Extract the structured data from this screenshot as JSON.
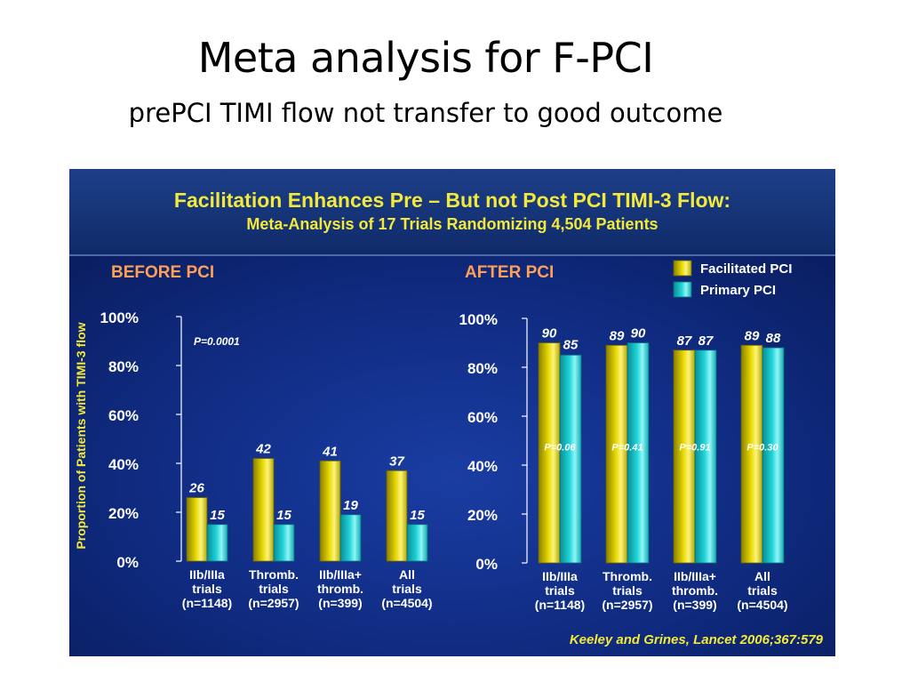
{
  "slide": {
    "title": "Meta analysis for F-PCI",
    "subtitle": "prePCI TIMI flow not transfer to good outcome"
  },
  "figure": {
    "title": "Facilitation Enhances Pre – But not Post PCI TIMI-3 Flow:",
    "subtitle": "Meta-Analysis of 17 Trials Randomizing 4,504 Patients",
    "citation": "Keeley and Grines, Lancet 2006;367:579"
  },
  "colors": {
    "facilitated": "#e6d800",
    "primary": "#20d3d8",
    "panel_label": "#ff9f55",
    "axis_label": "#f3e93a",
    "text": "#ffffff"
  },
  "chart_data": [
    {
      "type": "bar",
      "title": "BEFORE PCI",
      "ylabel": "Proportion of Patients with TIMI-3 flow",
      "ylim": [
        0,
        100
      ],
      "yticks": [
        "0%",
        "20%",
        "40%",
        "60%",
        "80%",
        "100%"
      ],
      "categories": [
        [
          "IIb/IIIa",
          "trials",
          "(n=1148)"
        ],
        [
          "Thromb.",
          "trials",
          "(n=2957)"
        ],
        [
          "IIb/IIIa+",
          "thromb.",
          "(n=399)"
        ],
        [
          "All",
          "trials",
          "(n=4504)"
        ]
      ],
      "series": [
        {
          "name": "Facilitated PCI",
          "values": [
            26,
            42,
            41,
            37
          ]
        },
        {
          "name": "Primary PCI",
          "values": [
            15,
            15,
            19,
            15
          ]
        }
      ],
      "annotations": [
        "P=0.0001"
      ]
    },
    {
      "type": "bar",
      "title": "AFTER PCI",
      "ylim": [
        0,
        100
      ],
      "yticks": [
        "0%",
        "20%",
        "40%",
        "60%",
        "80%",
        "100%"
      ],
      "categories": [
        [
          "IIb/IIIa",
          "trials",
          "(n=1148)"
        ],
        [
          "Thromb.",
          "trials",
          "(n=2957)"
        ],
        [
          "IIb/IIIa+",
          "thromb.",
          "(n=399)"
        ],
        [
          "All",
          "trials",
          "(n=4504)"
        ]
      ],
      "series": [
        {
          "name": "Facilitated PCI",
          "values": [
            90,
            89,
            87,
            89
          ]
        },
        {
          "name": "Primary PCI",
          "values": [
            85,
            90,
            87,
            88
          ]
        }
      ],
      "pvalues": [
        "P=0.06",
        "P=0.41",
        "P=0.91",
        "P=0.30"
      ],
      "legend": [
        "Facilitated PCI",
        "Primary PCI"
      ],
      "legend_position": "top-right"
    }
  ]
}
